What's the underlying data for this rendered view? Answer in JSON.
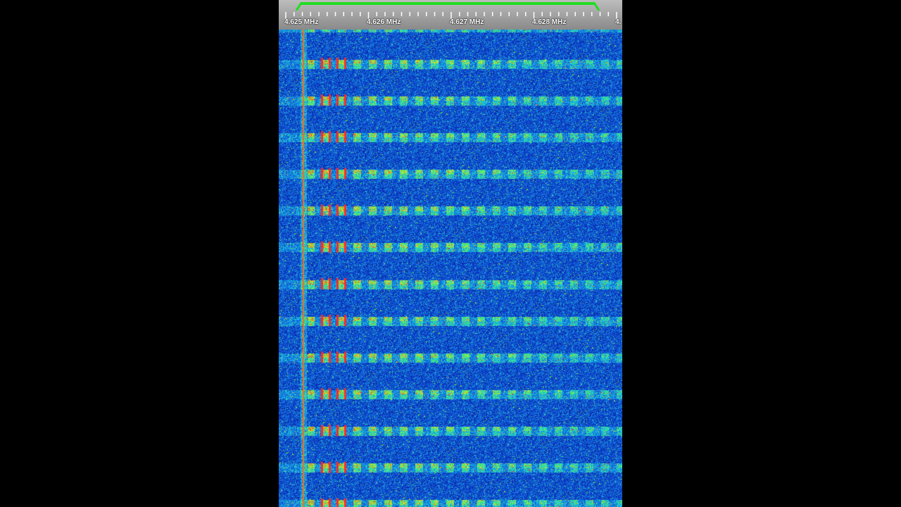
{
  "ruler": {
    "labels": [
      "4.625 MHz",
      "4.626 MHz",
      "4.627 MHz",
      "4.628 MHz",
      "4."
    ]
  },
  "colors": {
    "background": "#000000",
    "ruler": "#a8a8a8",
    "passband": "#22dd22",
    "waterfall_base": "#0a1a6e",
    "carrier": "#ff6a1a"
  },
  "waterfall": {
    "burst_count": 13,
    "carrier_line_visible": true
  }
}
